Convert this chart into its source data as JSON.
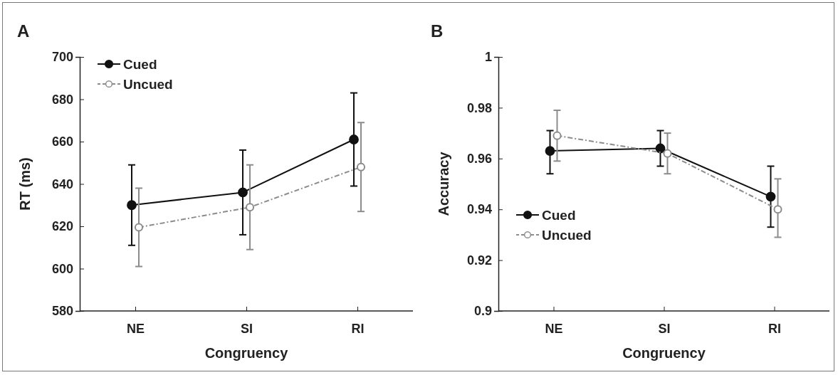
{
  "chart_data": [
    {
      "type": "line",
      "title": "A",
      "xlabel": "Congruency",
      "ylabel": "RT (ms)",
      "categories": [
        "NE",
        "SI",
        "RI"
      ],
      "ylim": [
        580,
        700
      ],
      "yticks": [
        580,
        600,
        620,
        640,
        660,
        680,
        700
      ],
      "grid": false,
      "legend": "top left",
      "marker": "circle",
      "series": [
        {
          "name": "Cued",
          "color": "#111111",
          "line_style": "solid",
          "values": [
            630,
            636,
            661
          ],
          "errors": [
            [
              611,
              649
            ],
            [
              616,
              656
            ],
            [
              639,
              683
            ]
          ]
        },
        {
          "name": "Uncued",
          "color": "#8c8c8c",
          "line_style": "dashed",
          "values": [
            619.5,
            629,
            648
          ],
          "errors": [
            [
              601,
              638
            ],
            [
              609,
              649
            ],
            [
              627,
              669
            ]
          ]
        }
      ]
    },
    {
      "type": "line",
      "title": "B",
      "xlabel": "Congruency",
      "ylabel": "Accuracy",
      "categories": [
        "NE",
        "SI",
        "RI"
      ],
      "ylim": [
        0.9,
        1
      ],
      "yticks": [
        0.9,
        0.92,
        0.94,
        0.96,
        0.98,
        1
      ],
      "grid": false,
      "legend": "bottom left",
      "marker": "circle",
      "series": [
        {
          "name": "Cued",
          "color": "#111111",
          "line_style": "solid",
          "values": [
            0.963,
            0.964,
            0.945
          ],
          "errors": [
            [
              0.954,
              0.971
            ],
            [
              0.957,
              0.971
            ],
            [
              0.933,
              0.957
            ]
          ]
        },
        {
          "name": "Uncued",
          "color": "#8c8c8c",
          "line_style": "dashed",
          "values": [
            0.969,
            0.962,
            0.94
          ],
          "errors": [
            [
              0.959,
              0.979
            ],
            [
              0.954,
              0.97
            ],
            [
              0.929,
              0.952
            ]
          ]
        }
      ]
    }
  ]
}
